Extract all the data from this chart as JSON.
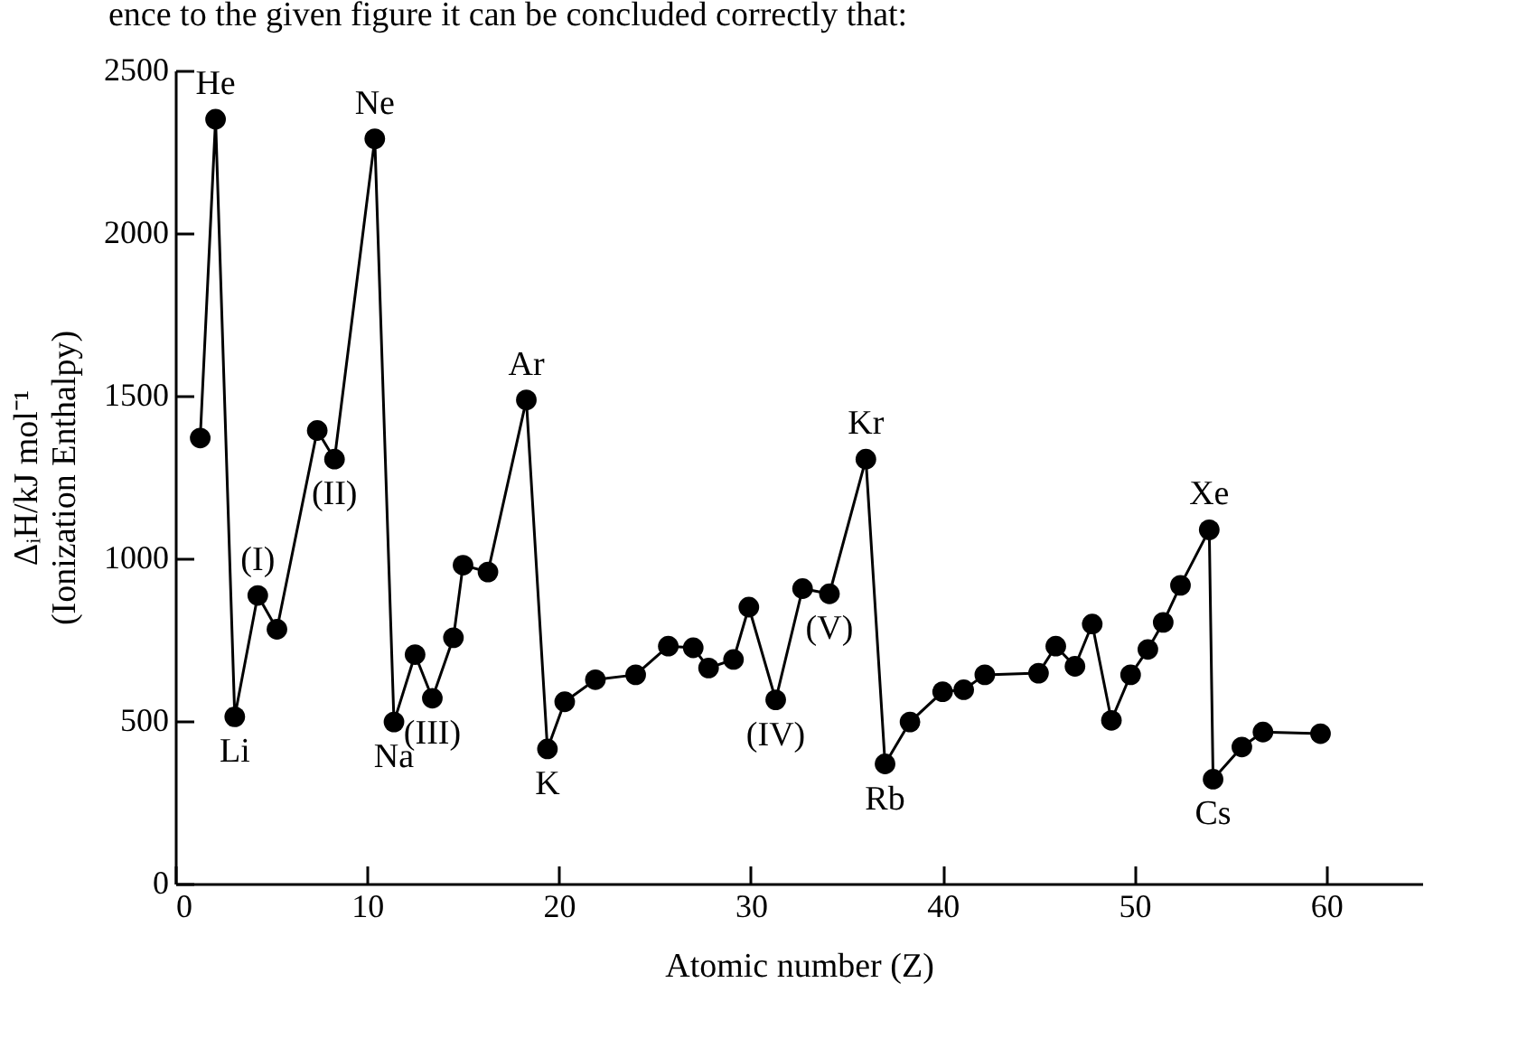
{
  "chart_data": {
    "type": "line",
    "xlabel": "Atomic number (Z)",
    "ylabel": "ΔᵢH/kJ mol⁻¹\n(Ionization Enthalpy)",
    "x": [
      1.3,
      2.1,
      3.1,
      4.3,
      5.3,
      7.4,
      8.3,
      10.4,
      11.4,
      12.5,
      13.4,
      14.5,
      15.0,
      16.3,
      18.3,
      19.4,
      20.3,
      21.9,
      24.0,
      25.7,
      27.0,
      27.8,
      29.1,
      29.9,
      31.3,
      32.7,
      34.1,
      36.0,
      37.0,
      38.3,
      40.0,
      41.1,
      42.2,
      45.0,
      45.9,
      46.9,
      47.8,
      48.8,
      49.8,
      50.7,
      51.5,
      52.4,
      53.9,
      54.1,
      55.6,
      56.7,
      59.7
    ],
    "series": [
      {
        "color": "#000000",
        "values": [
          1370,
          2350,
          513,
          886,
          782,
          1393,
          1305,
          2290,
          497,
          704,
          570,
          756,
          979,
          958,
          1487,
          414,
          559,
          627,
          642,
          730,
          725,
          663,
          689,
          850,
          565,
          907,
          891,
          1305,
          368,
          497,
          590,
          596,
          642,
          647,
          730,
          668,
          798,
          502,
          642,
          720,
          803,
          917,
          1088,
          321,
          420,
          466,
          461
        ]
      }
    ],
    "xlim": [
      0,
      65
    ],
    "xticks": [
      0,
      10,
      20,
      30,
      40,
      50,
      60
    ],
    "ylim": [
      0,
      2500
    ],
    "yticks": [
      0,
      500,
      1000,
      1500,
      2000,
      2500
    ],
    "grid": false,
    "marker": "circle",
    "line_style": "solid",
    "annotations": [
      "ence to the given figure it can be concluded correctly that:",
      {
        "text": "He",
        "x": 2.1,
        "y": 2350
      },
      {
        "text": "Li",
        "x": 3.1,
        "y": 513
      },
      {
        "text": "(I)",
        "x": 4.3,
        "y": 886
      },
      {
        "text": "(II)",
        "x": 8.3,
        "y": 1305
      },
      {
        "text": "Ne",
        "x": 10.4,
        "y": 2290
      },
      {
        "text": "Na",
        "x": 11.4,
        "y": 497
      },
      {
        "text": "(III)",
        "x": 13.4,
        "y": 570
      },
      {
        "text": "Ar",
        "x": 18.3,
        "y": 1487
      },
      {
        "text": "K",
        "x": 19.4,
        "y": 414
      },
      {
        "text": "(IV)",
        "x": 31.3,
        "y": 565
      },
      {
        "text": "(V)",
        "x": 34.1,
        "y": 891
      },
      {
        "text": "Kr",
        "x": 36.0,
        "y": 1305
      },
      {
        "text": "Rb",
        "x": 37.0,
        "y": 368
      },
      {
        "text": "Xe",
        "x": 53.9,
        "y": 1088
      },
      {
        "text": "Cs",
        "x": 54.1,
        "y": 321
      }
    ]
  }
}
